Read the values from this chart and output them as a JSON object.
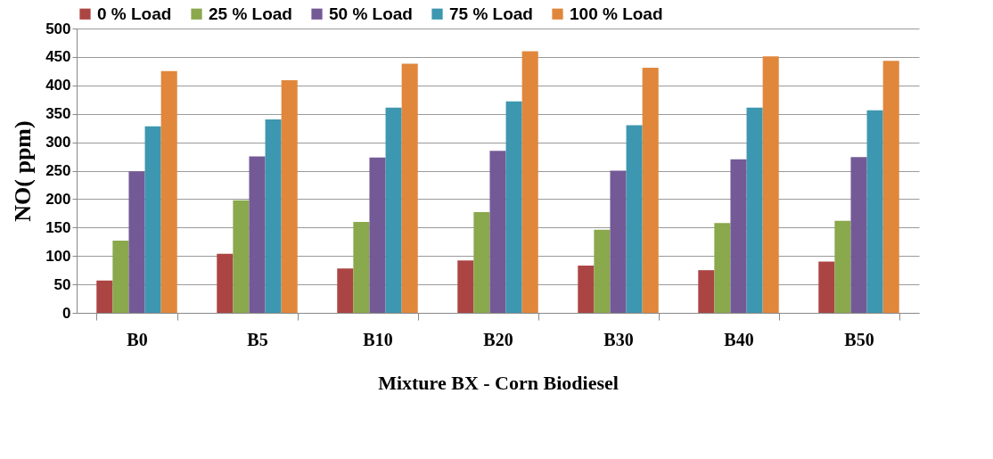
{
  "chart_data": {
    "type": "bar",
    "xlabel": "Mixture BX - Corn Biodiesel",
    "ylabel": "NO( ppm)",
    "categories": [
      "B0",
      "B5",
      "B10",
      "B20",
      "B30",
      "B40",
      "B50"
    ],
    "series": [
      {
        "name": "0 % Load",
        "color": "#ab4543",
        "values": [
          57,
          104,
          78,
          92,
          83,
          75,
          90
        ]
      },
      {
        "name": "25 % Load",
        "color": "#8aa84c",
        "values": [
          127,
          198,
          160,
          177,
          146,
          158,
          162
        ]
      },
      {
        "name": "50 % Load",
        "color": "#735a96",
        "values": [
          249,
          275,
          273,
          285,
          250,
          270,
          274
        ]
      },
      {
        "name": "75 % Load",
        "color": "#3d97b0",
        "values": [
          328,
          340,
          361,
          372,
          330,
          361,
          356
        ]
      },
      {
        "name": "100 % Load",
        "color": "#e0873c",
        "values": [
          425,
          409,
          438,
          460,
          431,
          451,
          443
        ]
      }
    ],
    "ylim": [
      0,
      500
    ],
    "yticks": [
      0,
      50,
      100,
      150,
      200,
      250,
      300,
      350,
      400,
      450,
      500
    ],
    "grid": "y",
    "legend": "top"
  }
}
